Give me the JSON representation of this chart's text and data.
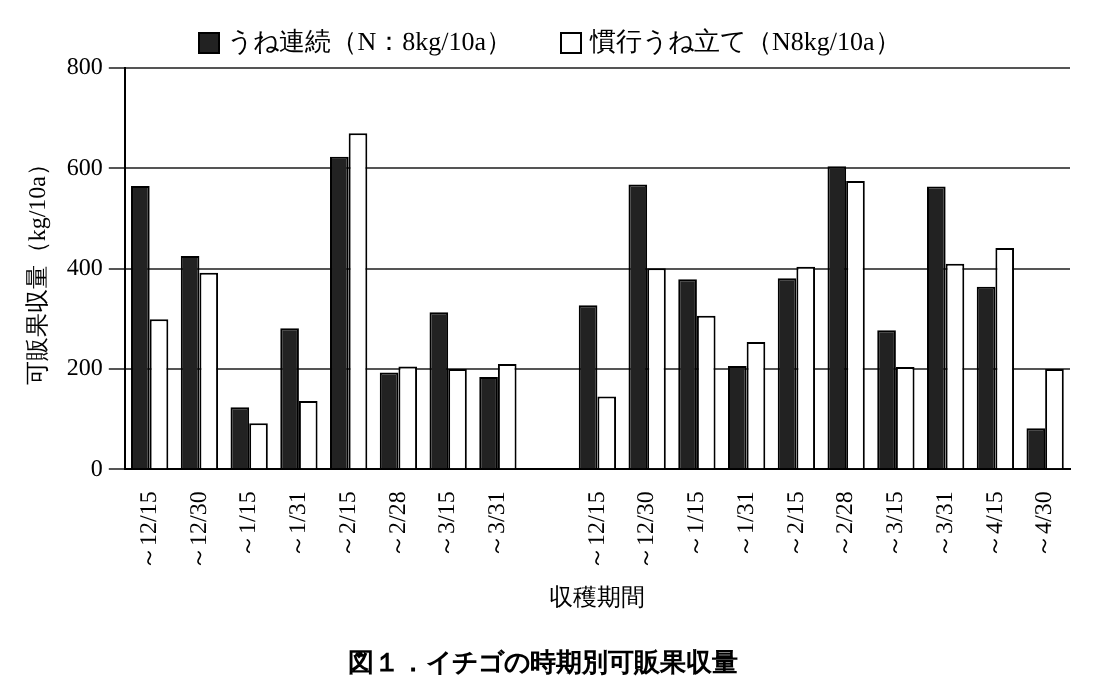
{
  "chart_data": {
    "type": "bar",
    "title": "図１．イチゴの時期別可販果収量",
    "xlabel": "収穫期間",
    "ylabel": "可販果収量（kg/10a）",
    "categories": [
      "～12/15",
      "～12/30",
      "～1/15",
      "～1/31",
      "～2/15",
      "～2/28",
      "～3/15",
      "～3/31",
      null,
      "～12/15",
      "～12/30",
      "～1/15",
      "～1/31",
      "～2/15",
      "～2/28",
      "～3/15",
      "～3/31",
      "～4/15",
      "～4/30"
    ],
    "series": [
      {
        "name": "うね連続（N：8kg/10a）",
        "color": "#222222",
        "values": [
          565,
          425,
          124,
          281,
          623,
          193,
          313,
          184,
          null,
          327,
          568,
          379,
          206,
          381,
          604,
          277,
          564,
          364,
          82
        ]
      },
      {
        "name": "慣行うね立て（N8kg/10a）",
        "color": "#ffffff",
        "values": [
          299,
          392,
          92,
          136,
          670,
          205,
          200,
          210,
          null,
          145,
          401,
          306,
          254,
          404,
          575,
          204,
          410,
          441,
          200
        ]
      }
    ],
    "ylim": [
      0,
      800
    ],
    "yticks": [
      0,
      200,
      400,
      600,
      800
    ],
    "grid": "y",
    "legend": "top"
  }
}
